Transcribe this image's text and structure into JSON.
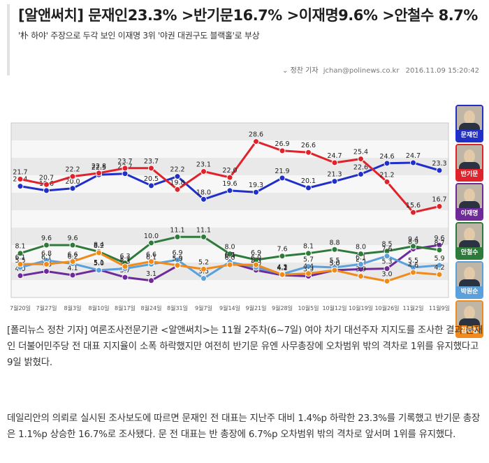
{
  "article": {
    "headline": "[알앤써치] 문재인23.3% >반기문16.7% >이재명9.6% >안철수 8.7%",
    "subhead": "'朴 하야' 주장으로 두각 보인 이재명 3위 '야권 대권구도 블랙홀'로 부상",
    "author": "정찬 기자",
    "email": "jchan@polinews.co.kr",
    "date": "2016.11.09 15:20:42",
    "paragraph1": "[폴리뉴스 정찬 기자] 여론조사전문기관 <알앤써치>는 11월 2주차(6~7일) 여야 차기 대선주자 지지도를 조사한 결과 문재인 더불어민주당 전 대표 지지율이 소폭 하락했지만 여전히 반기문 유엔 사무총장에 오차범위 밖의 격차로 1위를 유지했다고 9일 밝혔다.",
    "paragraph2": "데일리안의 의뢰로 실시된 조사보도에 따르면 문재인 전 대표는 지난주 대비 1.4%p 하락한 23.3%를 기록했고 반기문 총장은 1.1%p 상승한 16.7%로 조사됐다. 문 전 대표는 반 총장에 6.7%p 오차범위 밖의 격차로 앞서며 1위를 유지했다."
  },
  "chart_data": {
    "type": "line",
    "x": [
      "7월20일",
      "7월27일",
      "8월3일",
      "8월10일",
      "8월17일",
      "8월24일",
      "8월31일",
      "9월7일",
      "9월14일",
      "9월21일",
      "9월28일",
      "10월5일",
      "10월12일",
      "10월19일",
      "10월26일",
      "11월2일",
      "11월9일"
    ],
    "series": [
      {
        "name": "문재인",
        "color": "#1f2fc8",
        "values": [
          20.4,
          19.6,
          20.0,
          22.5,
          22.7,
          20.5,
          22.2,
          18.0,
          19.6,
          19.3,
          21.9,
          20.1,
          21.3,
          22.6,
          24.6,
          24.7,
          23.3
        ]
      },
      {
        "name": "반기문",
        "color": "#e0232a",
        "values": [
          21.7,
          20.7,
          22.2,
          22.8,
          23.7,
          23.7,
          19.8,
          23.1,
          22.0,
          28.6,
          26.9,
          26.6,
          24.7,
          25.4,
          21.2,
          15.6,
          16.7
        ]
      },
      {
        "name": "이재명",
        "color": "#6f2a9a",
        "values": [
          4.0,
          4.8,
          4.1,
          5.1,
          3.7,
          3.1,
          5.8,
          null,
          6.4,
          5.0,
          4.1,
          3.9,
          5.0,
          5.2,
          5.3,
          8.9,
          9.6
        ]
      },
      {
        "name": "안철수",
        "color": "#2e7a3a",
        "values": [
          8.1,
          9.6,
          9.6,
          8.4,
          6.3,
          10.0,
          11.1,
          11.1,
          8.0,
          6.9,
          7.6,
          8.1,
          8.8,
          8.0,
          8.5,
          9.4,
          8.7
        ]
      },
      {
        "name": "박원순",
        "color": "#5aa0dc",
        "values": [
          5.5,
          6.8,
          6.2,
          5.0,
          5.3,
          6.1,
          6.9,
          3.5,
          6.5,
          5.5,
          4.3,
          5.7,
          5.5,
          6.1,
          7.6,
          5.5,
          5.9
        ]
      },
      {
        "name": "김무성",
        "color": "#f08a1a",
        "values": [
          6.1,
          6.1,
          6.6,
          8.2,
          5.7,
          6.6,
          5.9,
          5.2,
          6.0,
          6.0,
          4.2,
          4.4,
          5.0,
          3.9,
          3.0,
          4.6,
          4.2
        ]
      }
    ],
    "ylim": [
      0,
      32
    ],
    "grid": true
  },
  "legend": {
    "items": [
      {
        "name": "문재인",
        "color": "#1f2fc8"
      },
      {
        "name": "반기문",
        "color": "#e0232a"
      },
      {
        "name": "이재명",
        "color": "#6f2a9a"
      },
      {
        "name": "안철수",
        "color": "#2e7a3a"
      },
      {
        "name": "박원순",
        "color": "#5aa0dc"
      },
      {
        "name": "김무성",
        "color": "#f08a1a"
      }
    ]
  }
}
